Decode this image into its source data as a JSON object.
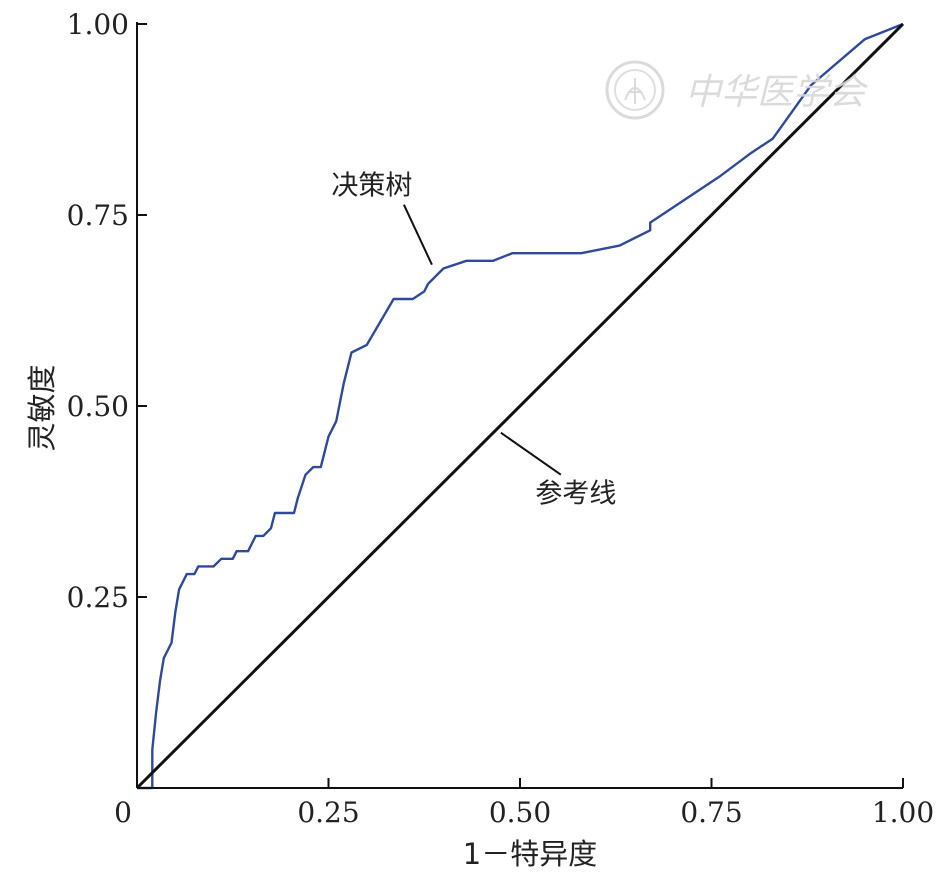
{
  "chart_data": {
    "type": "line",
    "xlabel": "1－特异度",
    "ylabel": "灵敏度",
    "xlim": [
      0,
      1
    ],
    "ylim": [
      0,
      1
    ],
    "x_ticks": [
      "0",
      "0.25",
      "0.50",
      "0.75",
      "1.00"
    ],
    "x_tick_values": [
      0,
      0.25,
      0.5,
      0.75,
      1.0
    ],
    "y_ticks": [
      "0.25",
      "0.50",
      "0.75",
      "1.00"
    ],
    "y_tick_values": [
      0.25,
      0.5,
      0.75,
      1.0
    ],
    "grid": false,
    "series": [
      {
        "name": "决策树",
        "color": "#2f4a9a",
        "points": [
          [
            0.0,
            0.0
          ],
          [
            0.02,
            0.0
          ],
          [
            0.02,
            0.05
          ],
          [
            0.025,
            0.1
          ],
          [
            0.03,
            0.14
          ],
          [
            0.035,
            0.17
          ],
          [
            0.045,
            0.19
          ],
          [
            0.05,
            0.23
          ],
          [
            0.055,
            0.26
          ],
          [
            0.065,
            0.28
          ],
          [
            0.075,
            0.28
          ],
          [
            0.08,
            0.29
          ],
          [
            0.09,
            0.29
          ],
          [
            0.1,
            0.29
          ],
          [
            0.11,
            0.3
          ],
          [
            0.125,
            0.3
          ],
          [
            0.13,
            0.31
          ],
          [
            0.145,
            0.31
          ],
          [
            0.155,
            0.33
          ],
          [
            0.165,
            0.33
          ],
          [
            0.175,
            0.34
          ],
          [
            0.18,
            0.36
          ],
          [
            0.195,
            0.36
          ],
          [
            0.205,
            0.36
          ],
          [
            0.21,
            0.38
          ],
          [
            0.22,
            0.41
          ],
          [
            0.23,
            0.42
          ],
          [
            0.24,
            0.42
          ],
          [
            0.25,
            0.46
          ],
          [
            0.26,
            0.48
          ],
          [
            0.27,
            0.53
          ],
          [
            0.28,
            0.57
          ],
          [
            0.3,
            0.58
          ],
          [
            0.335,
            0.64
          ],
          [
            0.36,
            0.64
          ],
          [
            0.375,
            0.65
          ],
          [
            0.38,
            0.66
          ],
          [
            0.4,
            0.68
          ],
          [
            0.43,
            0.69
          ],
          [
            0.465,
            0.69
          ],
          [
            0.49,
            0.7
          ],
          [
            0.58,
            0.7
          ],
          [
            0.63,
            0.71
          ],
          [
            0.67,
            0.73
          ],
          [
            0.67,
            0.74
          ],
          [
            0.76,
            0.8
          ],
          [
            0.8,
            0.83
          ],
          [
            0.83,
            0.85
          ],
          [
            0.88,
            0.92
          ],
          [
            0.95,
            0.98
          ],
          [
            1.0,
            1.0
          ]
        ]
      },
      {
        "name": "参考线",
        "color": "#111111",
        "points": [
          [
            0,
            0
          ],
          [
            1,
            1
          ]
        ]
      }
    ],
    "annotations": [
      {
        "text": "决策树",
        "target": [
          0.385,
          0.685
        ]
      },
      {
        "text": "参考线",
        "target": [
          0.475,
          0.465
        ]
      }
    ],
    "legend": "none"
  },
  "watermark": {
    "text": "中华医学会"
  }
}
